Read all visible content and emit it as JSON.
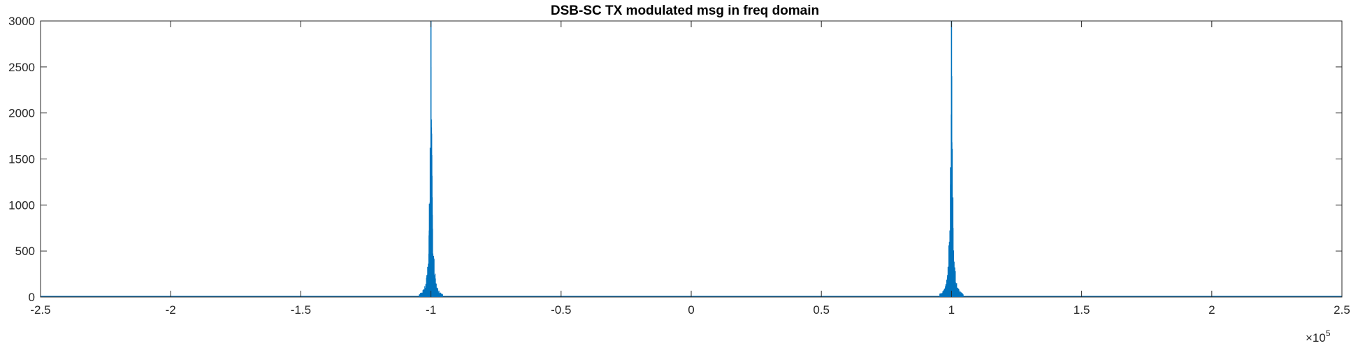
{
  "chart_data": {
    "type": "line",
    "title": "DSB-SC TX modulated msg in freq domain",
    "xlabel": "",
    "ylabel": "",
    "xlim": [
      -250000,
      250000
    ],
    "ylim": [
      0,
      3000
    ],
    "x_ticks": [
      -250000,
      -200000,
      -150000,
      -100000,
      -50000,
      0,
      50000,
      100000,
      150000,
      200000,
      250000
    ],
    "x_tick_labels": [
      "-2.5",
      "-2",
      "-1.5",
      "-1",
      "-0.5",
      "0",
      "0.5",
      "1",
      "1.5",
      "2",
      "2.5"
    ],
    "y_ticks": [
      0,
      500,
      1000,
      1500,
      2000,
      2500,
      3000
    ],
    "y_tick_labels": [
      "0",
      "500",
      "1000",
      "1500",
      "2000",
      "2500",
      "3000"
    ],
    "x_exponent_label": {
      "base": "×10",
      "exponent": "5"
    },
    "grid": false,
    "box": true,
    "series": [
      {
        "color": "#0072BD",
        "peaks": [
          {
            "center": -100000,
            "peak": 3000,
            "halfwidth": 4500
          },
          {
            "center": 100000,
            "peak": 3000,
            "halfwidth": 4500
          }
        ],
        "baseline": 0
      }
    ]
  }
}
